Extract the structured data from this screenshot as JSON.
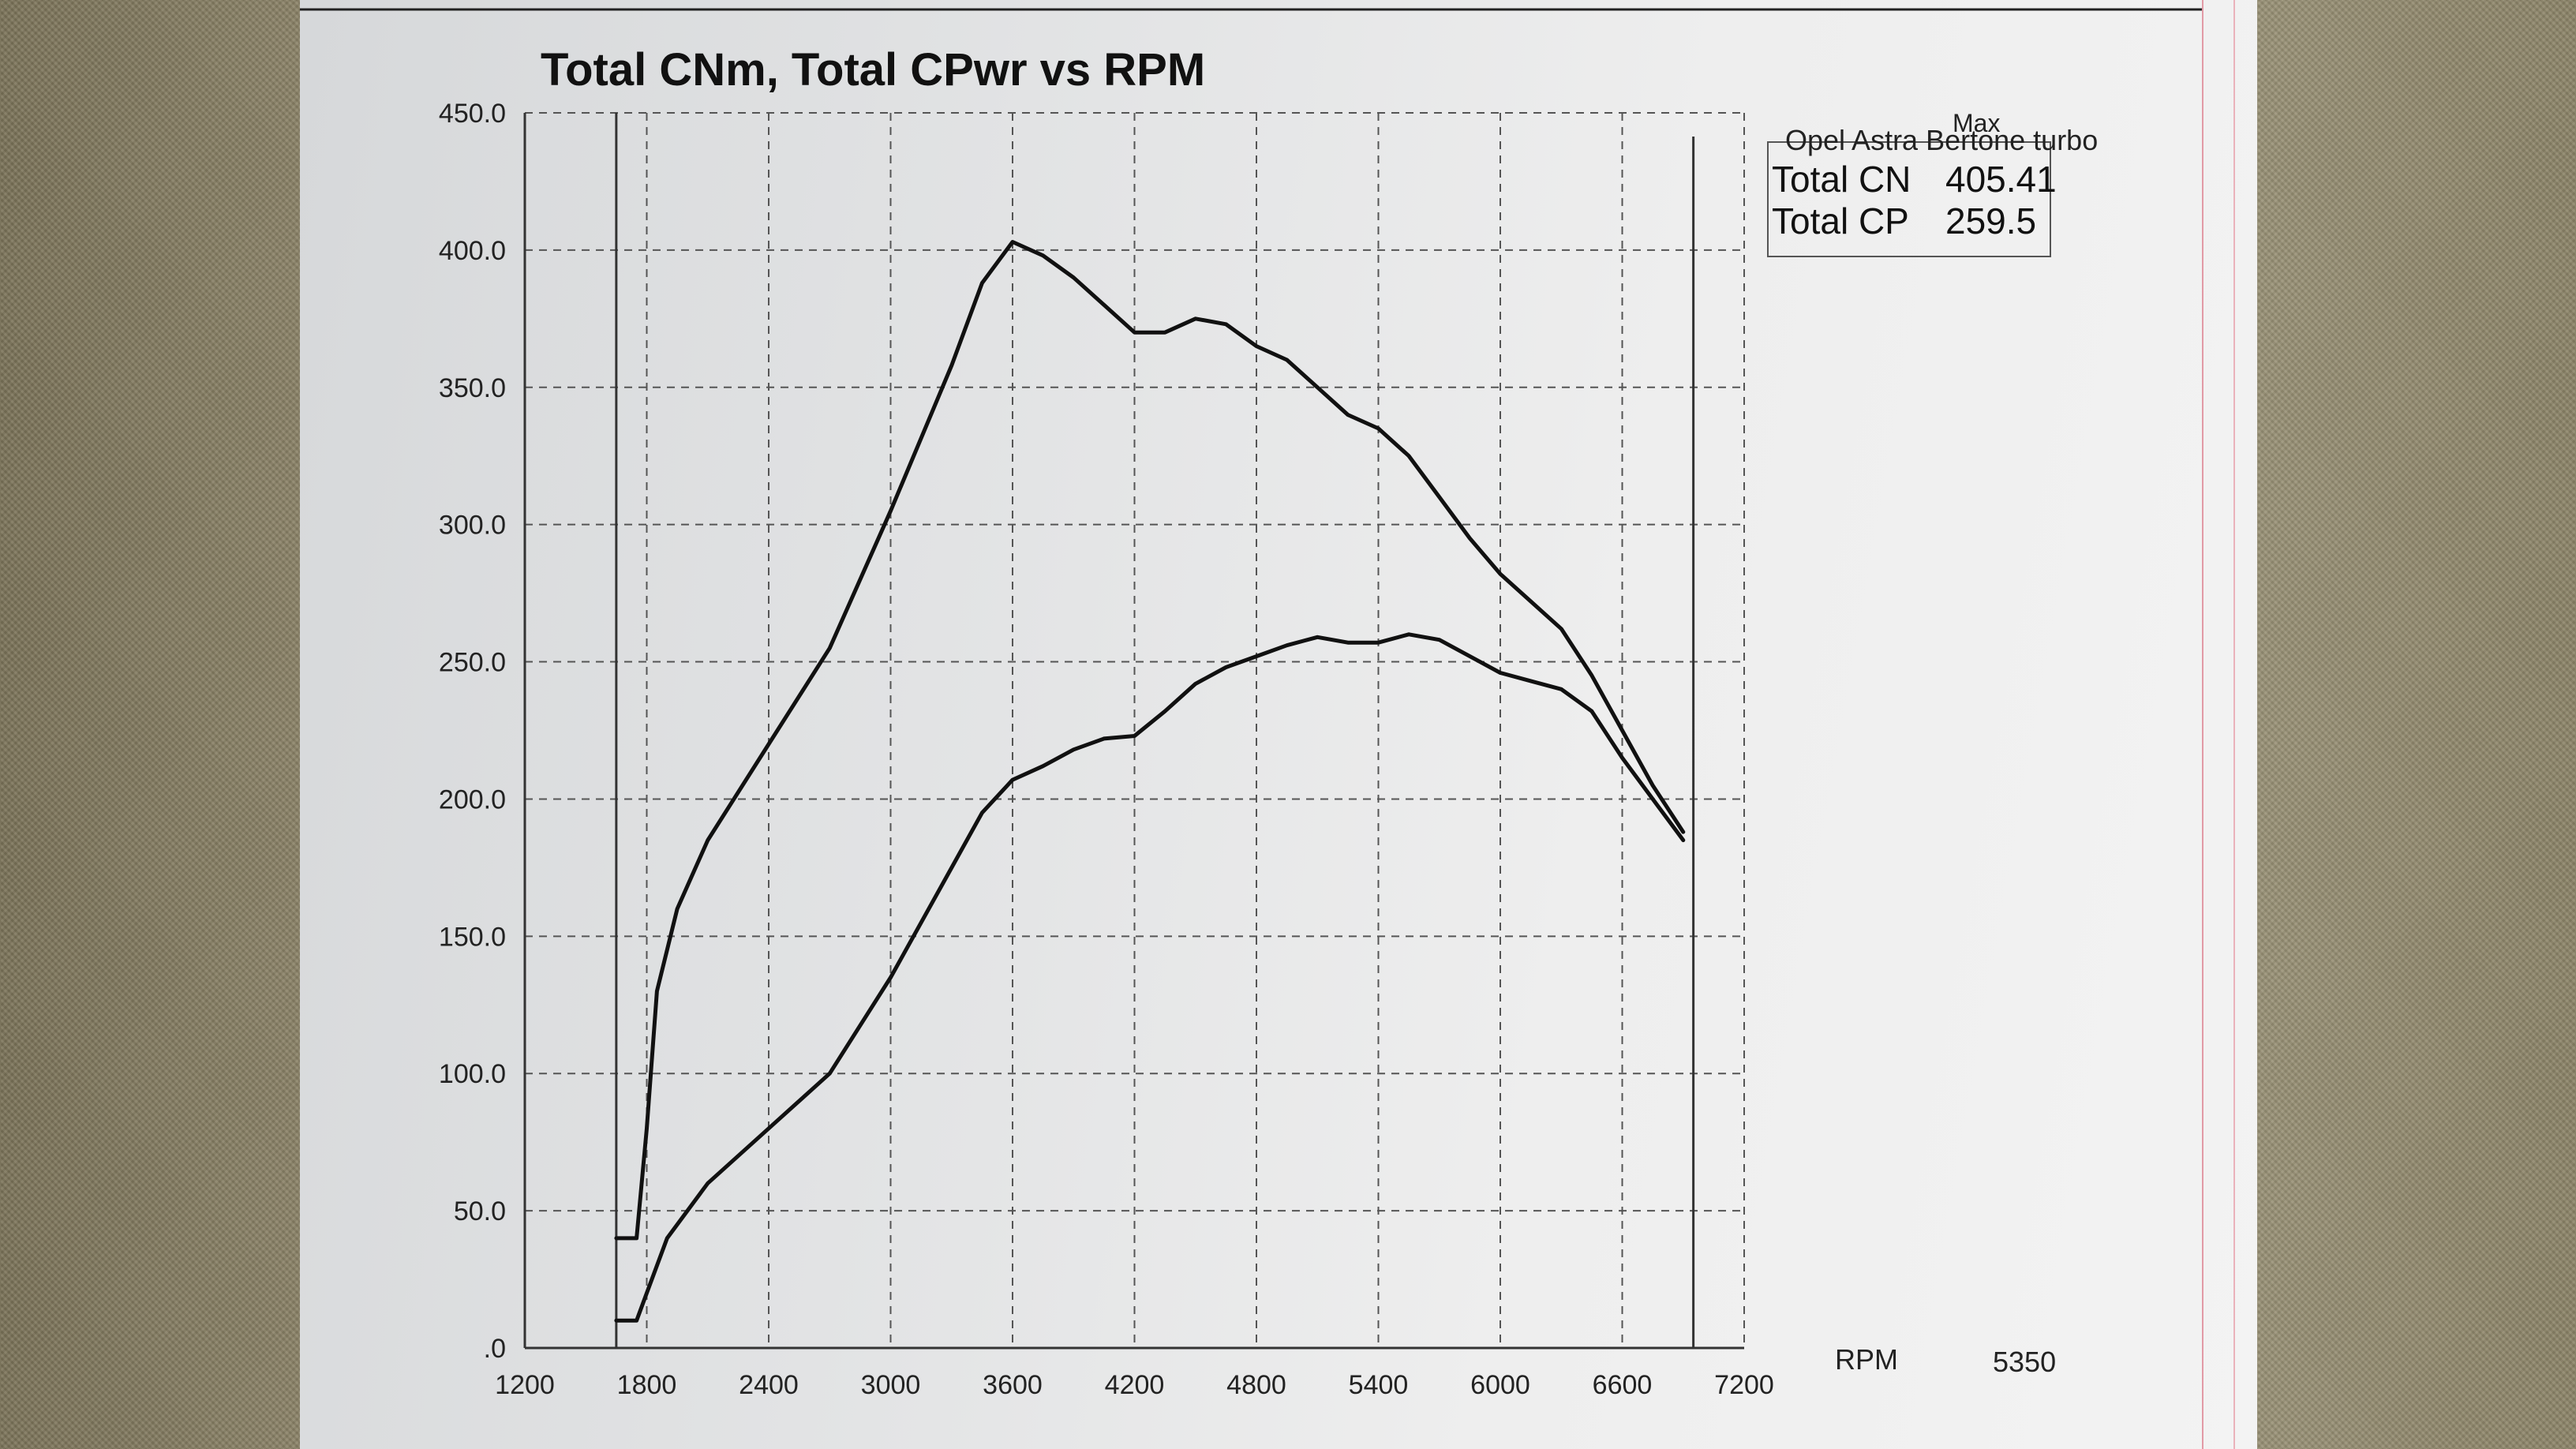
{
  "chart_data": {
    "type": "line",
    "title": "Total CNm, Total CPwr vs RPM",
    "xlabel": "RPM",
    "x_ticks": [
      "1200",
      "1800",
      "2400",
      "3000",
      "3600",
      "4200",
      "4800",
      "5400",
      "6000",
      "6600",
      "7200"
    ],
    "y_ticks": [
      ".0",
      "50.0",
      "100.0",
      "150.0",
      "200.0",
      "250.0",
      "300.0",
      "350.0",
      "400.0",
      "450.0"
    ],
    "xlim": [
      1200,
      7200
    ],
    "ylim": [
      0,
      450
    ],
    "grid": true,
    "series": [
      {
        "values": [
          [
            1650,
            40
          ],
          [
            1750,
            40
          ],
          [
            1800,
            80
          ],
          [
            1850,
            130
          ],
          [
            1950,
            160
          ],
          [
            2100,
            185
          ],
          [
            2400,
            220
          ],
          [
            2700,
            255
          ],
          [
            3000,
            305
          ],
          [
            3300,
            358
          ],
          [
            3450,
            388
          ],
          [
            3600,
            403
          ],
          [
            3750,
            398
          ],
          [
            3900,
            390
          ],
          [
            4050,
            380
          ],
          [
            4200,
            370
          ],
          [
            4350,
            370
          ],
          [
            4500,
            375
          ],
          [
            4650,
            373
          ],
          [
            4800,
            365
          ],
          [
            4950,
            360
          ],
          [
            5100,
            350
          ],
          [
            5250,
            340
          ],
          [
            5400,
            335
          ],
          [
            5550,
            325
          ],
          [
            5700,
            310
          ],
          [
            5850,
            295
          ],
          [
            6000,
            282
          ],
          [
            6150,
            272
          ],
          [
            6300,
            262
          ],
          [
            6450,
            245
          ],
          [
            6600,
            225
          ],
          [
            6750,
            205
          ],
          [
            6900,
            188
          ]
        ]
      },
      {
        "values": [
          [
            1650,
            10
          ],
          [
            1750,
            10
          ],
          [
            1800,
            20
          ],
          [
            1900,
            40
          ],
          [
            2100,
            60
          ],
          [
            2400,
            80
          ],
          [
            2700,
            100
          ],
          [
            3000,
            135
          ],
          [
            3300,
            175
          ],
          [
            3450,
            195
          ],
          [
            3600,
            207
          ],
          [
            3750,
            212
          ],
          [
            3900,
            218
          ],
          [
            4050,
            222
          ],
          [
            4200,
            223
          ],
          [
            4350,
            232
          ],
          [
            4500,
            242
          ],
          [
            4650,
            248
          ],
          [
            4800,
            252
          ],
          [
            4950,
            256
          ],
          [
            5100,
            259
          ],
          [
            5250,
            257
          ],
          [
            5400,
            257
          ],
          [
            5550,
            260
          ],
          [
            5700,
            258
          ],
          [
            5850,
            252
          ],
          [
            6000,
            246
          ],
          [
            6150,
            243
          ],
          [
            6300,
            240
          ],
          [
            6450,
            232
          ],
          [
            6600,
            215
          ],
          [
            6750,
            200
          ],
          [
            6900,
            185
          ]
        ]
      }
    ]
  },
  "legend_box": {
    "vehicle": "Opel Astra Bertone turbo",
    "max_header": "Max",
    "rows": [
      {
        "label": "Total CN",
        "value": "405.41"
      },
      {
        "label": "Total CP",
        "value": "259.5"
      }
    ]
  },
  "rpm_footer": {
    "label": "RPM",
    "value": "5350"
  }
}
